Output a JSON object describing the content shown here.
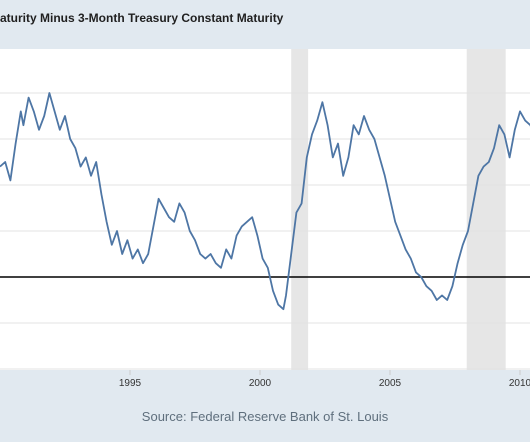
{
  "chart_data": {
    "type": "line",
    "title": "aturity Minus 3-Month Treasury Constant Maturity",
    "xlim": [
      1990,
      2012
    ],
    "ylim": [
      -2,
      5
    ],
    "zero_line": 0,
    "grid": "horizontal",
    "x_ticks": [
      1995,
      2000,
      2005,
      2010
    ],
    "x_tick_labels": [
      "1995",
      "2000",
      "2005",
      "2010"
    ],
    "recessions": [
      [
        2001.2,
        2001.85
      ],
      [
        2007.95,
        2009.45
      ]
    ],
    "series": [
      {
        "color": "#4e76a5",
        "x": [
          1990.0,
          1990.2,
          1990.4,
          1990.6,
          1990.8,
          1990.9,
          1991.1,
          1991.3,
          1991.5,
          1991.7,
          1991.9,
          1992.1,
          1992.3,
          1992.5,
          1992.7,
          1992.9,
          1993.1,
          1993.3,
          1993.5,
          1993.7,
          1993.9,
          1994.1,
          1994.3,
          1994.5,
          1994.7,
          1994.9,
          1995.1,
          1995.3,
          1995.5,
          1995.7,
          1995.9,
          1996.1,
          1996.3,
          1996.5,
          1996.7,
          1996.9,
          1997.1,
          1997.3,
          1997.5,
          1997.7,
          1997.9,
          1998.1,
          1998.3,
          1998.5,
          1998.7,
          1998.9,
          1999.1,
          1999.3,
          1999.5,
          1999.7,
          1999.9,
          2000.1,
          2000.3,
          2000.5,
          2000.7,
          2000.9,
          2001.0,
          2001.2,
          2001.4,
          2001.6,
          2001.8,
          2002.0,
          2002.2,
          2002.4,
          2002.6,
          2002.8,
          2003.0,
          2003.2,
          2003.4,
          2003.6,
          2003.8,
          2004.0,
          2004.2,
          2004.4,
          2004.6,
          2004.8,
          2005.0,
          2005.2,
          2005.4,
          2005.6,
          2005.8,
          2006.0,
          2006.2,
          2006.4,
          2006.6,
          2006.8,
          2007.0,
          2007.2,
          2007.4,
          2007.6,
          2007.8,
          2008.0,
          2008.2,
          2008.4,
          2008.6,
          2008.8,
          2009.0,
          2009.2,
          2009.4,
          2009.6,
          2009.8,
          2010.0,
          2010.2,
          2010.4,
          2010.6,
          2010.8,
          2011.0,
          2011.2,
          2011.4,
          2011.6,
          2011.8,
          2012.0
        ],
        "values": [
          2.4,
          2.5,
          2.1,
          2.9,
          3.6,
          3.3,
          3.9,
          3.6,
          3.2,
          3.5,
          4.0,
          3.6,
          3.2,
          3.5,
          3.0,
          2.8,
          2.4,
          2.6,
          2.2,
          2.5,
          1.8,
          1.2,
          0.7,
          1.0,
          0.5,
          0.8,
          0.4,
          0.6,
          0.3,
          0.5,
          1.1,
          1.7,
          1.5,
          1.3,
          1.2,
          1.6,
          1.4,
          1.0,
          0.8,
          0.5,
          0.4,
          0.5,
          0.3,
          0.2,
          0.6,
          0.4,
          0.9,
          1.1,
          1.2,
          1.3,
          0.9,
          0.4,
          0.2,
          -0.3,
          -0.6,
          -0.7,
          -0.4,
          0.5,
          1.4,
          1.6,
          2.6,
          3.1,
          3.4,
          3.8,
          3.3,
          2.6,
          2.9,
          2.2,
          2.6,
          3.3,
          3.1,
          3.5,
          3.2,
          3.0,
          2.6,
          2.2,
          1.7,
          1.2,
          0.9,
          0.6,
          0.4,
          0.1,
          0.0,
          -0.2,
          -0.3,
          -0.5,
          -0.4,
          -0.5,
          -0.2,
          0.3,
          0.7,
          1.0,
          1.6,
          2.2,
          2.4,
          2.5,
          2.8,
          3.3,
          3.1,
          2.6,
          3.2,
          3.6,
          3.4,
          3.3,
          3.0,
          2.5,
          3.2,
          3.5,
          3.3,
          2.9,
          2.2,
          2.0
        ]
      }
    ]
  },
  "source": "Source: Federal Reserve Bank of St. Louis"
}
